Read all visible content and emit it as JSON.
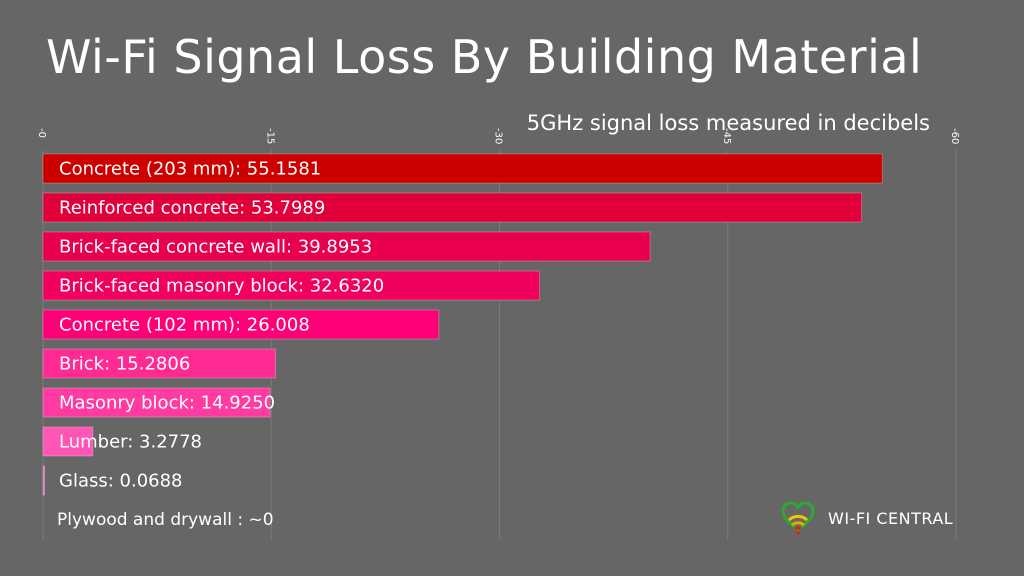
{
  "title": "Wi-Fi Signal Loss By Building Material",
  "subtitle": "5GHz signal loss measured in decibels",
  "footnote": "Plywood and drywall : ~0",
  "brand": {
    "name": "WI-FI CENTRAL",
    "logo_icon": "heart-wifi-icon"
  },
  "colors": {
    "background": "#666666",
    "bars": [
      "#cc0000",
      "#e0003a",
      "#e8004e",
      "#f2005e",
      "#ff0077",
      "#ff2a92",
      "#ff3aa0",
      "#ff55b4",
      "#ff66bb"
    ],
    "grid": "#7a7a7a"
  },
  "chart_data": {
    "type": "bar",
    "orientation": "horizontal",
    "categories": [
      "Concrete (203 mm)",
      "Reinforced concrete",
      "Brick-faced concrete wall",
      "Brick-faced masonry block",
      "Concrete (102 mm)",
      "Brick",
      "Masonry block",
      "Lumber",
      "Glass"
    ],
    "value_labels": [
      "55.1581",
      "53.7989",
      "39.8953",
      "32.6320",
      "26.008",
      "15.2806",
      "14.9250",
      "3.2778",
      "0.0688"
    ],
    "values": [
      55.1581,
      53.7989,
      39.8953,
      32.632,
      26.008,
      15.2806,
      14.925,
      3.2778,
      0.0688
    ],
    "xlim": [
      0,
      60
    ],
    "ticks": [
      0,
      15,
      30,
      45,
      60
    ],
    "tick_labels": [
      "-0",
      "-15",
      "-30",
      "-45",
      "-60"
    ],
    "grid": true
  }
}
